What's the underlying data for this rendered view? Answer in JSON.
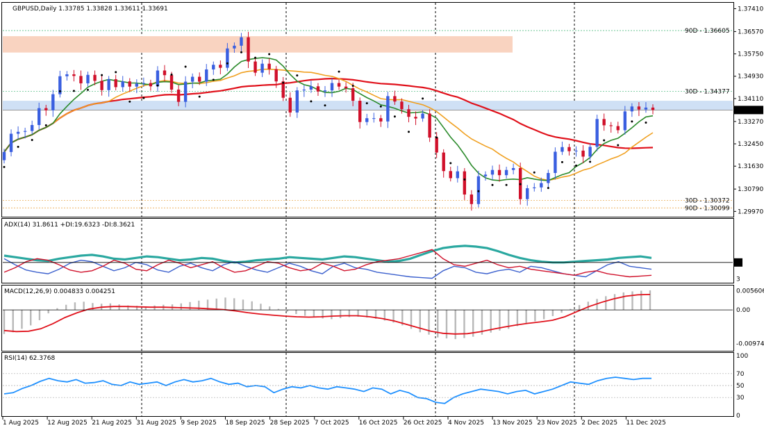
{
  "chart_data": [
    {
      "type": "candlestick",
      "panel": "price",
      "title": "GBPUSD,Daily  1.33785 1.33828 1.33611 1.33691",
      "ylim": [
        1.298,
        1.376
      ],
      "y_ticks": [
        "1.37410",
        "1.36570",
        "1.35750",
        "1.34930",
        "1.34110",
        "1.33691",
        "1.33270",
        "1.32450",
        "1.31630",
        "1.30790",
        "1.29970"
      ],
      "current_price": "1.33691",
      "levels": [
        {
          "label": "90D - 1.36605",
          "value": 1.36605,
          "color": "#3cb371"
        },
        {
          "label": "30D - 1.34377",
          "value": 1.34377,
          "color": "#3cb371"
        },
        {
          "label": "30D - 1.30372",
          "value": 1.30372,
          "color": "#e69b2e"
        },
        {
          "label": "90D - 1.30099",
          "value": 1.30099,
          "color": "#e69b2e"
        }
      ],
      "zones": [
        {
          "from": 1.358,
          "to": 1.364,
          "color": "#f9d3c0"
        },
        {
          "from": 1.337,
          "to": 1.3403,
          "color": "#cfe0f5"
        }
      ],
      "x_tick_labels": [
        "1 Aug 2025",
        "12 Aug 2025",
        "21 Aug 2025",
        "31 Aug 2025",
        "9 Sep 2025",
        "18 Sep 2025",
        "28 Sep 2025",
        "7 Oct 2025",
        "16 Oct 2025",
        "26 Oct 2025",
        "4 Nov 2025",
        "13 Nov 2025",
        "23 Nov 2025",
        "2 Dec 2025",
        "11 Dec 2025"
      ],
      "closes": [
        1.3215,
        1.3282,
        1.3289,
        1.3292,
        1.3314,
        1.3376,
        1.3368,
        1.3427,
        1.3493,
        1.35,
        1.3494,
        1.3467,
        1.3498,
        1.3476,
        1.3442,
        1.3482,
        1.3453,
        1.3474,
        1.3455,
        1.3466,
        1.3468,
        1.3456,
        1.3514,
        1.3497,
        1.3444,
        1.3399,
        1.3473,
        1.3491,
        1.3473,
        1.3518,
        1.3535,
        1.3524,
        1.3595,
        1.3605,
        1.3636,
        1.3547,
        1.3506,
        1.3539,
        1.3519,
        1.3474,
        1.3414,
        1.336,
        1.3441,
        1.3444,
        1.3456,
        1.3437,
        1.3441,
        1.3468,
        1.3455,
        1.3449,
        1.3403,
        1.3325,
        1.3339,
        1.3339,
        1.3327,
        1.342,
        1.34,
        1.3372,
        1.3344,
        1.3338,
        1.3356,
        1.3268,
        1.3213,
        1.3145,
        1.3119,
        1.3144,
        1.3059,
        1.3024,
        1.3126,
        1.3132,
        1.3149,
        1.313,
        1.3149,
        1.3156,
        1.3042,
        1.3082,
        1.3085,
        1.3101,
        1.3138,
        1.3216,
        1.3233,
        1.3218,
        1.322,
        1.3198,
        1.3234,
        1.3336,
        1.3313,
        1.331,
        1.3295,
        1.3364,
        1.3382,
        1.3371,
        1.3378,
        1.3369
      ],
      "series": [
        {
          "name": "SMA red",
          "color": "#e0101a"
        },
        {
          "name": "SMA orange",
          "color": "#f0a020"
        },
        {
          "name": "SMA green",
          "color": "#2a8a2a"
        }
      ]
    },
    {
      "type": "line",
      "panel": "adx",
      "title": "ADX(14) 31.8611 +DI:19.6323 -DI:8.3621",
      "ylim": [
        0,
        80
      ],
      "y_ticks": [
        "25",
        "3"
      ],
      "series": [
        {
          "name": "ADX",
          "color": "#2aa8a0",
          "values": [
            34,
            32,
            30,
            28,
            27,
            30,
            32,
            34,
            35,
            33,
            30,
            29,
            31,
            33,
            32,
            30,
            28,
            29,
            31,
            30,
            27,
            25,
            26,
            28,
            29,
            30,
            32,
            31,
            30,
            29,
            31,
            33,
            32,
            30,
            28,
            26,
            27,
            30,
            35,
            40,
            44,
            46,
            47,
            46,
            44,
            40,
            35,
            31,
            28,
            26,
            25,
            25,
            26,
            27,
            28,
            29,
            31,
            32,
            33,
            31
          ]
        },
        {
          "name": "+DI",
          "color": "#3a5fcd",
          "values": [
            30,
            22,
            15,
            12,
            10,
            16,
            24,
            28,
            26,
            20,
            14,
            18,
            25,
            22,
            15,
            12,
            20,
            24,
            18,
            14,
            22,
            26,
            20,
            15,
            12,
            18,
            24,
            20,
            14,
            10,
            20,
            24,
            18,
            16,
            12,
            10,
            8,
            6,
            5,
            4,
            14,
            20,
            18,
            12,
            10,
            14,
            16,
            12,
            20,
            18,
            14,
            10,
            8,
            6,
            14,
            22,
            26,
            20,
            18,
            16
          ]
        },
        {
          "name": "-DI",
          "color": "#d0102a",
          "values": [
            12,
            18,
            26,
            30,
            28,
            22,
            15,
            12,
            14,
            20,
            28,
            24,
            16,
            14,
            22,
            28,
            24,
            18,
            22,
            26,
            18,
            12,
            14,
            20,
            26,
            24,
            18,
            14,
            16,
            24,
            20,
            14,
            16,
            22,
            26,
            28,
            30,
            34,
            38,
            42,
            30,
            22,
            20,
            24,
            28,
            22,
            18,
            20,
            16,
            14,
            12,
            10,
            8,
            12,
            14,
            10,
            8,
            6,
            7,
            8
          ]
        }
      ]
    },
    {
      "type": "bar+line",
      "panel": "macd",
      "title": "MACD(12,26,9) 0.004833 0.004251",
      "ylim": [
        -0.0115,
        0.0065
      ],
      "y_ticks": [
        "0.005606",
        "0.00",
        "-0.00974"
      ],
      "histogram": [
        -0.007,
        -0.0065,
        -0.0055,
        -0.0045,
        -0.003,
        -0.001,
        0.0005,
        0.0015,
        0.0022,
        0.0024,
        0.002,
        0.0018,
        0.0019,
        0.0016,
        0.0013,
        0.0012,
        0.001,
        0.0013,
        0.0015,
        0.0016,
        0.0019,
        0.0023,
        0.0027,
        0.003,
        0.0033,
        0.0036,
        0.0034,
        0.003,
        0.0025,
        0.0018,
        0.001,
        0.0003,
        -0.0005,
        -0.0012,
        -0.0017,
        -0.0022,
        -0.0025,
        -0.0027,
        -0.0024,
        -0.0021,
        -0.002,
        -0.0022,
        -0.0026,
        -0.0031,
        -0.0037,
        -0.0045,
        -0.0055,
        -0.0065,
        -0.0072,
        -0.008,
        -0.0083,
        -0.0085,
        -0.0082,
        -0.0078,
        -0.0072,
        -0.0066,
        -0.006,
        -0.0055,
        -0.0047,
        -0.004,
        -0.0033,
        -0.0027,
        -0.0018,
        -0.0008,
        0.0003,
        0.0014,
        0.0024,
        0.0032,
        0.004,
        0.0046,
        0.0051,
        0.0054,
        0.0056,
        0.0057
      ],
      "signal": [
        -0.006,
        -0.0063,
        -0.0062,
        -0.0055,
        -0.004,
        -0.0022,
        -0.0008,
        0.0003,
        0.0008,
        0.001,
        0.001,
        0.0009,
        0.0008,
        0.0008,
        0.0007,
        0.0006,
        0.0005,
        0.0003,
        0.0001,
        -0.0003,
        -0.0008,
        -0.0012,
        -0.0015,
        -0.0018,
        -0.002,
        -0.0021,
        -0.002,
        -0.0018,
        -0.0017,
        -0.0017,
        -0.002,
        -0.0025,
        -0.0032,
        -0.0042,
        -0.0052,
        -0.0062,
        -0.0068,
        -0.007,
        -0.0069,
        -0.0064,
        -0.0057,
        -0.005,
        -0.0044,
        -0.0039,
        -0.0035,
        -0.003,
        -0.002,
        -0.0005,
        0.001,
        0.0022,
        0.0032,
        0.004,
        0.0044,
        0.0045
      ],
      "series": [
        {
          "name": "MACD histogram",
          "color": "#b8b8b8"
        },
        {
          "name": "Signal",
          "color": "#e0101a"
        }
      ]
    },
    {
      "type": "line",
      "panel": "rsi",
      "title": "RSI(14) 62.3768",
      "ylim": [
        0,
        100
      ],
      "y_ticks": [
        "100",
        "70",
        "50",
        "30",
        "0"
      ],
      "series": [
        {
          "name": "RSI",
          "color": "#1e90ff",
          "values": [
            36,
            38,
            45,
            50,
            57,
            62,
            58,
            56,
            60,
            54,
            55,
            58,
            52,
            50,
            56,
            52,
            54,
            56,
            50,
            56,
            60,
            56,
            58,
            62,
            56,
            52,
            54,
            48,
            50,
            48,
            38,
            44,
            48,
            46,
            50,
            46,
            44,
            48,
            46,
            44,
            40,
            46,
            44,
            36,
            42,
            38,
            30,
            28,
            22,
            20,
            30,
            36,
            40,
            44,
            42,
            40,
            36,
            40,
            42,
            36,
            40,
            44,
            50,
            56,
            54,
            52,
            58,
            62,
            64,
            62,
            60,
            62,
            62
          ]
        }
      ]
    }
  ]
}
